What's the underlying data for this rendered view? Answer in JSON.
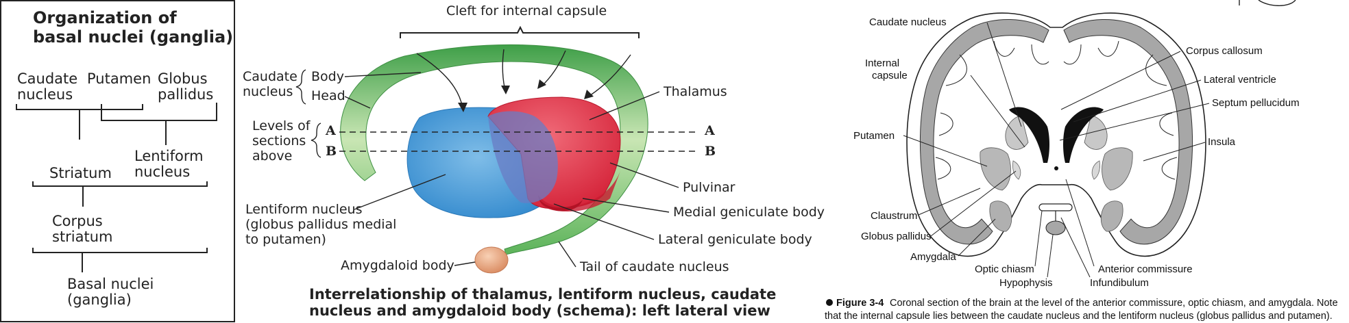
{
  "panel_left": {
    "title_line1": "Organization of",
    "title_line2": "basal nuclei (ganglia)",
    "caudate_1": "Caudate",
    "caudate_2": "nucleus",
    "putamen": "Putamen",
    "globus_1": "Globus",
    "globus_2": "pallidus",
    "striatum": "Striatum",
    "lentiform_1": "Lentiform",
    "lentiform_2": "nucleus",
    "corpus_1": "Corpus",
    "corpus_2": "striatum",
    "basal_1": "Basal nuclei",
    "basal_2": "(ganglia)"
  },
  "panel_middle": {
    "cleft": "Cleft for internal capsule",
    "caudate_1": "Caudate",
    "caudate_2": "nucleus",
    "body": "Body",
    "head": "Head",
    "levels_1": "Levels of",
    "levels_2": "sections",
    "levels_3": "above",
    "level_a": "A",
    "level_b": "B",
    "thalamus": "Thalamus",
    "pulvinar": "Pulvinar",
    "medial_gen": "Medial geniculate body",
    "lateral_gen": "Lateral geniculate body",
    "lentiform_1": "Lentiform nucleus",
    "lentiform_2": "(globus pallidus medial",
    "lentiform_3": "to putamen)",
    "amygdaloid": "Amygdaloid body",
    "tail": "Tail of caudate nucleus",
    "caption_1": "Interrelationship of thalamus, lentiform nucleus, caudate",
    "caption_2": "nucleus and amygdaloid body (schema): left lateral view"
  },
  "panel_right": {
    "caudate_nucleus": "Caudate nucleus",
    "internal_1": "Internal",
    "internal_2": "capsule",
    "putamen": "Putamen",
    "claustrum": "Claustrum",
    "globus_pallidus": "Globus pallidus",
    "amygdala": "Amygdala",
    "optic_chiasm": "Optic chiasm",
    "hypophysis": "Hypophysis",
    "infundibulum": "Infundibulum",
    "anterior_commissure": "Anterior commissure",
    "corpus_callosum": "Corpus callosum",
    "lateral_ventricle": "Lateral ventricle",
    "septum_pellucidum": "Septum pellucidum",
    "insula": "Insula",
    "figure_label": "Figure 3-4",
    "figure_text_1": "Coronal section of the brain at the level of the anterior commissure, optic chiasm, and amygdala. Note",
    "figure_text_2": "that the internal capsule lies between the caudate nucleus and the lentiform nucleus (globus pallidus and putamen)."
  },
  "colors": {
    "caudate_green": "#5db85a",
    "thalamus_red": "#e63a50",
    "lentiform_blue": "#4da0dc",
    "amygdala_orange": "#e8a07a",
    "brain_gray": "#a7a7a7",
    "ventricle_black": "#111111"
  }
}
